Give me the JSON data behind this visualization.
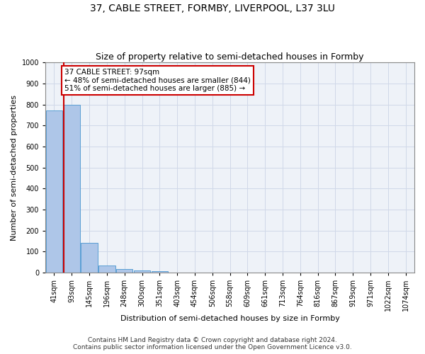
{
  "title1": "37, CABLE STREET, FORMBY, LIVERPOOL, L37 3LU",
  "title2": "Size of property relative to semi-detached houses in Formby",
  "xlabel": "Distribution of semi-detached houses by size in Formby",
  "ylabel": "Number of semi-detached properties",
  "footnote": "Contains HM Land Registry data © Crown copyright and database right 2024.\nContains public sector information licensed under the Open Government Licence v3.0.",
  "bin_labels": [
    "41sqm",
    "93sqm",
    "145sqm",
    "196sqm",
    "248sqm",
    "300sqm",
    "351sqm",
    "403sqm",
    "454sqm",
    "506sqm",
    "558sqm",
    "609sqm",
    "661sqm",
    "713sqm",
    "764sqm",
    "816sqm",
    "867sqm",
    "919sqm",
    "971sqm",
    "1022sqm",
    "1074sqm"
  ],
  "bar_heights": [
    770,
    800,
    140,
    35,
    15,
    10,
    5,
    0,
    0,
    0,
    0,
    0,
    0,
    0,
    0,
    0,
    0,
    0,
    0,
    0,
    0
  ],
  "bar_color": "#aec6e8",
  "bar_edge_color": "#5a9fd4",
  "property_bin_index": 1,
  "annotation_title": "37 CABLE STREET: 97sqm",
  "annotation_line1": "← 48% of semi-detached houses are smaller (844)",
  "annotation_line2": "51% of semi-detached houses are larger (885) →",
  "annotation_box_color": "#ffffff",
  "annotation_box_edge_color": "#cc0000",
  "red_line_color": "#cc0000",
  "ylim": [
    0,
    1000
  ],
  "yticks": [
    0,
    100,
    200,
    300,
    400,
    500,
    600,
    700,
    800,
    900,
    1000
  ],
  "grid_color": "#d0d8e8",
  "bg_color": "#eef2f8",
  "title1_fontsize": 10,
  "title2_fontsize": 9,
  "axis_label_fontsize": 8,
  "tick_fontsize": 7,
  "annotation_fontsize": 7.5,
  "footnote_fontsize": 6.5
}
